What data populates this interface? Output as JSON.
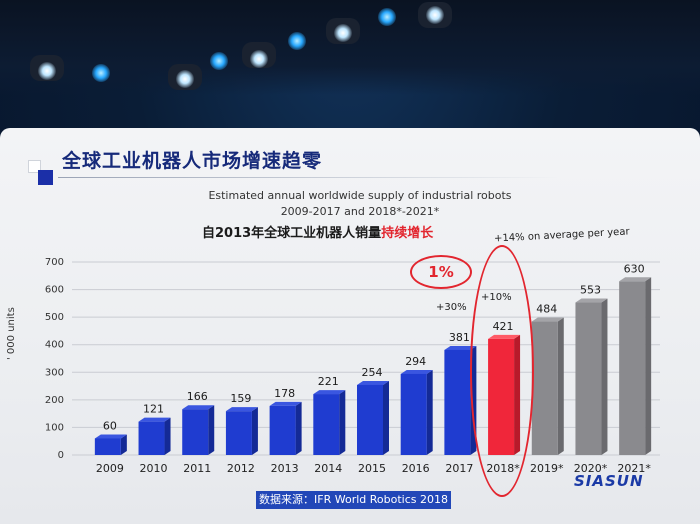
{
  "slide": {
    "title": "全球工业机器人市场增速趋零",
    "subtitle_line1": "Estimated annual worldwide supply of industrial robots",
    "subtitle_line2": "2009-2017 and 2018*-2021*",
    "headline_prefix": "自2013年全球工业机器人销量",
    "headline_highlight": "持续增长",
    "avg_growth_note": "+14% on average per year",
    "growth_2017": "+30%",
    "growth_2018": "+10%",
    "highlight_badge": "1%",
    "source": "数据来源：IFR World Robotics 2018",
    "logo": "SIASUN"
  },
  "colors": {
    "blue_bar": "#1f3cd0",
    "red_bar": "#f0263a",
    "gray_bar": "#8a8a8e",
    "red_outline": "#e2262f"
  },
  "chart_data": {
    "type": "bar",
    "title": "Estimated annual worldwide supply of industrial robots",
    "ylabel": "' 000 units",
    "xlabel": "",
    "ylim": [
      0,
      700
    ],
    "yticks": [
      0,
      100,
      200,
      300,
      400,
      500,
      600,
      700
    ],
    "grid": true,
    "categories": [
      "2009",
      "2010",
      "2011",
      "2012",
      "2013",
      "2014",
      "2015",
      "2016",
      "2017",
      "2018*",
      "2019*",
      "2020*",
      "2021*"
    ],
    "values": [
      60,
      121,
      166,
      159,
      178,
      221,
      254,
      294,
      381,
      421,
      484,
      553,
      630
    ],
    "bar_kinds": [
      "actual",
      "actual",
      "actual",
      "actual",
      "actual",
      "actual",
      "actual",
      "actual",
      "actual",
      "highlight",
      "forecast",
      "forecast",
      "forecast"
    ]
  }
}
